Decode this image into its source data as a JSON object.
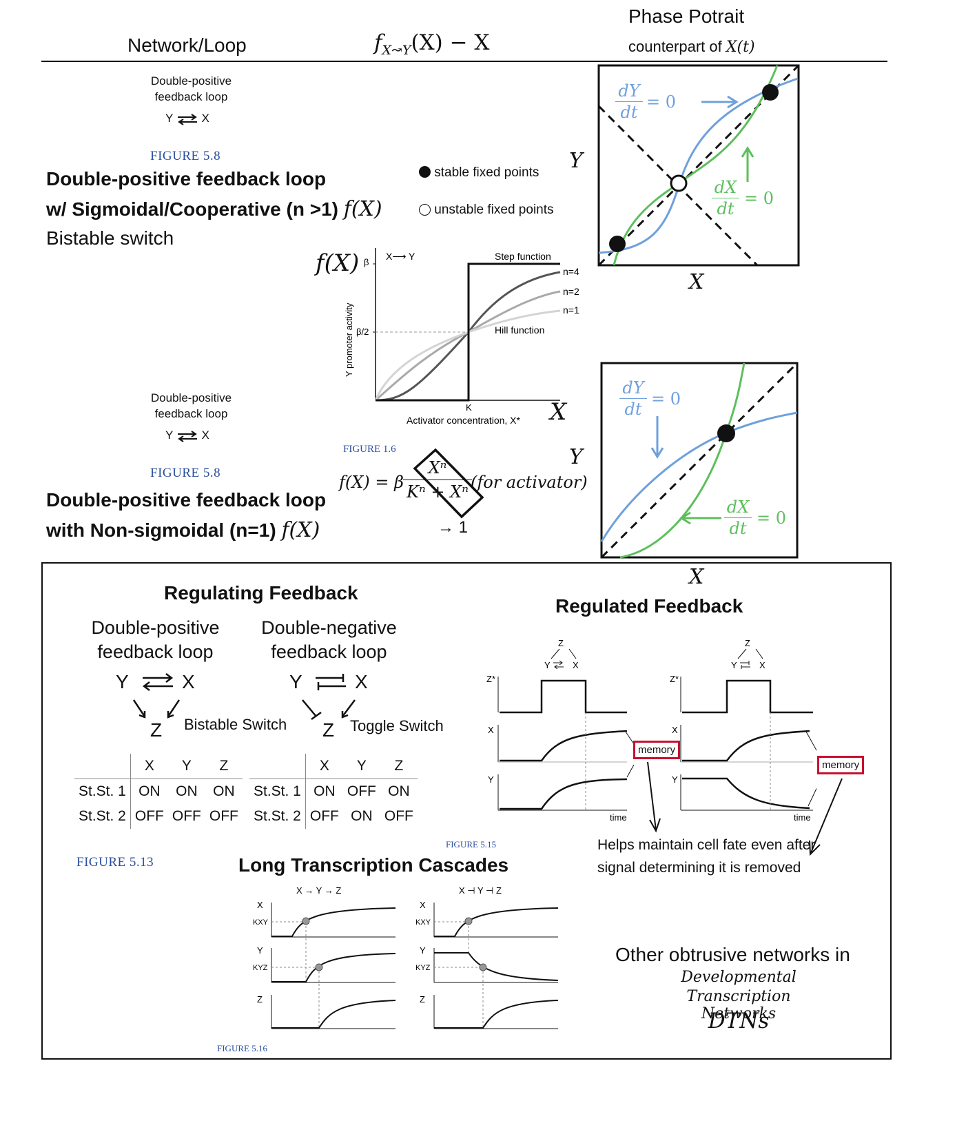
{
  "header": {
    "col1": "Network/Loop",
    "col2_f": "f",
    "col2_sub": "X↝Y",
    "col2_rest": "(X) − X",
    "col3_title": "Phase Potrait",
    "col3_sub": "counterpart of",
    "col3_sub_math": "X(t)"
  },
  "top": {
    "loop_label": "Double-positive feedback loop",
    "loop_y": "Y",
    "loop_x": "X",
    "fig58": "FIGURE 5.8",
    "title1": "Double-positive feedback loop",
    "title2": "w/ Sigmoidal/Cooperative (n >1)",
    "title2_math": "f(X)",
    "title3": "Bistable switch",
    "legend_stable": "stable fixed points",
    "legend_unstable": "unstable fixed points"
  },
  "hill_chart": {
    "f_label": "f(X)",
    "beta": "β",
    "beta_half": "β/2",
    "arrow_label": "X⟶ Y",
    "step": "Step function",
    "n4": "n=4",
    "n2": "n=2",
    "n1": "n=1",
    "hill": "Hill function",
    "ylabel": "Y promoter activity",
    "k": "K",
    "xlabel": "Activator concentration, X*",
    "x_axis_symbol": "X",
    "fig16": "FIGURE 1.6"
  },
  "formula": {
    "lhs": "f(X) = β",
    "num": "Xⁿ",
    "den": "Kⁿ + Xⁿ",
    "note": "(for activator)",
    "arrow": "→ 1"
  },
  "phase1": {
    "y_axis": "Y",
    "x_axis": "X",
    "dy_num": "dY",
    "dy_den": "dt",
    "dx_num": "dX",
    "dx_den": "dt",
    "eq0": "= 0"
  },
  "phase2": {
    "y_axis": "Y",
    "x_axis": "X",
    "dy_num": "dY",
    "dy_den": "dt",
    "dx_num": "dX",
    "dx_den": "dt",
    "eq0": "= 0"
  },
  "mid": {
    "loop_label": "Double-positive feedback loop",
    "loop_y": "Y",
    "loop_x": "X",
    "fig58": "FIGURE 5.8",
    "title1": "Double-positive feedback loop",
    "title2": "with Non-sigmoidal (n=1)",
    "title2_math": "f(X)"
  },
  "bottom": {
    "regulating_title": "Regulating Feedback",
    "dp_label": "Double-positive feedback loop",
    "dn_label": "Double-negative feedback loop",
    "y": "Y",
    "x": "X",
    "z": "Z",
    "bistable": "Bistable Switch",
    "toggle": "Toggle Switch",
    "table_headers": [
      "X",
      "Y",
      "Z"
    ],
    "table1_rows": [
      {
        "label": "St.St. 1",
        "vals": [
          "ON",
          "ON",
          "ON"
        ]
      },
      {
        "label": "St.St. 2",
        "vals": [
          "OFF",
          "OFF",
          "OFF"
        ]
      }
    ],
    "table2_rows": [
      {
        "label": "St.St. 1",
        "vals": [
          "ON",
          "OFF",
          "ON"
        ]
      },
      {
        "label": "St.St. 2",
        "vals": [
          "OFF",
          "ON",
          "OFF"
        ]
      }
    ],
    "fig513": "FIGURE 5.13",
    "regulated_title": "Regulated Feedback",
    "fig515": "FIGURE 5.15",
    "memory": "memory",
    "time": "time",
    "z_star": "Z*",
    "helps": "Helps maintain cell fate even after signal determining it is removed",
    "cascade_title": "Long Transcription Cascades",
    "cascade_left": "X → Y → Z",
    "cascade_right": "X ⊣ Y ⊣ Z",
    "kxy": "KXY",
    "kyz": "KYZ",
    "fig516": "FIGURE 5.16",
    "other1": "Other obtrusive networks in",
    "other2": "Developmental",
    "other3": "Transcription Networks",
    "other4": "DTNs"
  },
  "colors": {
    "blue_curve": "#6fa0dd",
    "green_curve": "#5cbf5c",
    "figure_blue": "#2b4f9e",
    "memory_red": "#c8102e"
  }
}
